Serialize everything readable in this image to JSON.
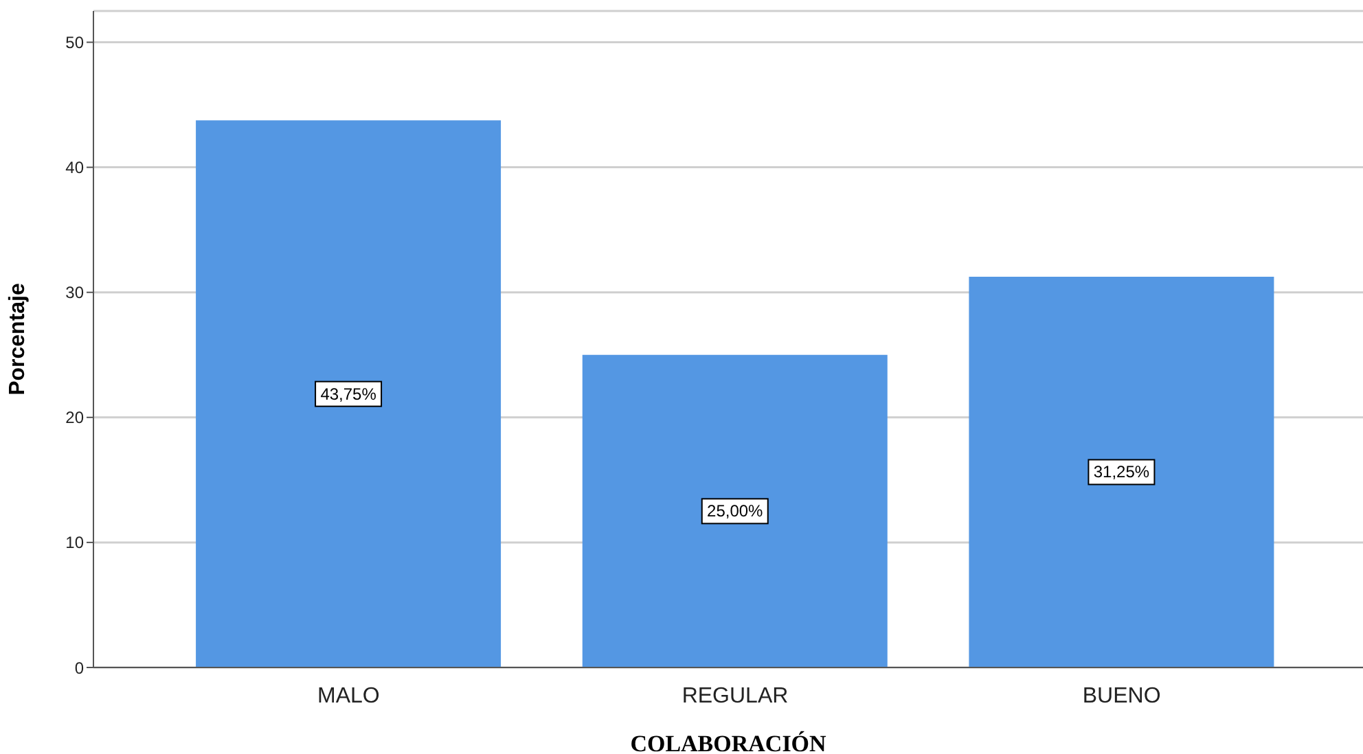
{
  "chart_data": {
    "type": "bar",
    "xlabel": "COLABORACIÓN",
    "ylabel": "Porcentaje",
    "categories": [
      "MALO",
      "REGULAR",
      "BUENO"
    ],
    "values": [
      43.75,
      25.0,
      31.25
    ],
    "value_labels": [
      "43,75%",
      "25,00%",
      "31,25%"
    ],
    "color": "#5497e3",
    "ylim": [
      0,
      52.5
    ],
    "yticks": [
      0,
      10,
      20,
      30,
      40,
      50
    ],
    "grid": "y"
  }
}
